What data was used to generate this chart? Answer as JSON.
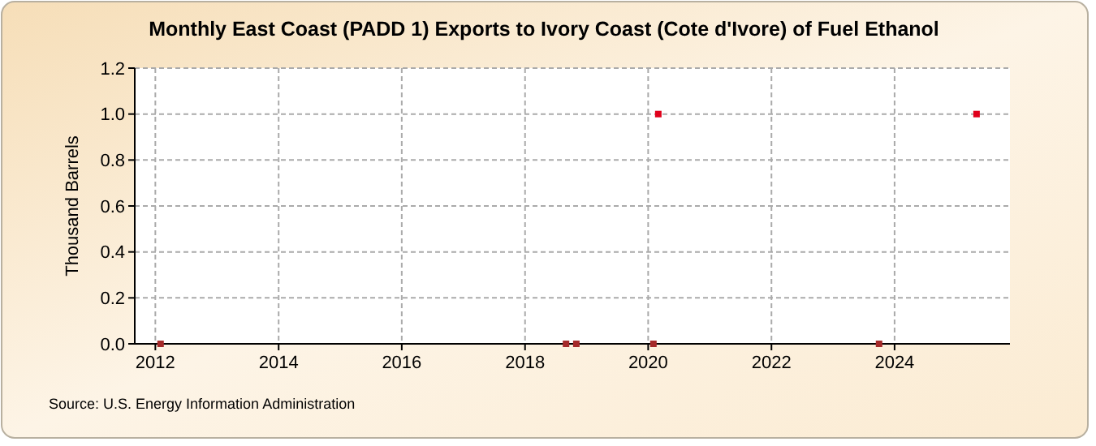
{
  "chart_data": {
    "type": "scatter",
    "title": "Monthly East Coast (PADD 1) Exports to Ivory Coast (Cote d'Ivore) of Fuel Ethanol",
    "ylabel": "Thousand Barrels",
    "x": [
      "2012-02",
      "2018-09",
      "2018-11",
      "2020-02",
      "2020-03",
      "2023-10",
      "2025-05"
    ],
    "values": [
      0,
      0,
      0,
      0,
      1.0,
      0,
      1.0
    ],
    "colors": [
      "#a52a2a",
      "#a52a2a",
      "#a52a2a",
      "#a52a2a",
      "#e0001b",
      "#a52a2a",
      "#e0001b"
    ],
    "xlim": [
      "2011-09",
      "2025-11-15"
    ],
    "xticks": [
      "2012",
      "2014",
      "2016",
      "2018",
      "2020",
      "2022",
      "2024"
    ],
    "ylim": [
      0,
      1.2
    ],
    "yticks": [
      {
        "value": 0,
        "label": "0.0"
      },
      {
        "value": 0.2,
        "label": "0.2"
      },
      {
        "value": 0.4,
        "label": "0.4"
      },
      {
        "value": 0.6,
        "label": "0.6"
      },
      {
        "value": 0.8,
        "label": "0.8"
      },
      {
        "value": 1.0,
        "label": "1.0"
      },
      {
        "value": 1.2,
        "label": "1.2"
      }
    ],
    "grid": true,
    "marker": "square",
    "annotations": [
      "Source: U.S. Energy Information Administration"
    ]
  }
}
